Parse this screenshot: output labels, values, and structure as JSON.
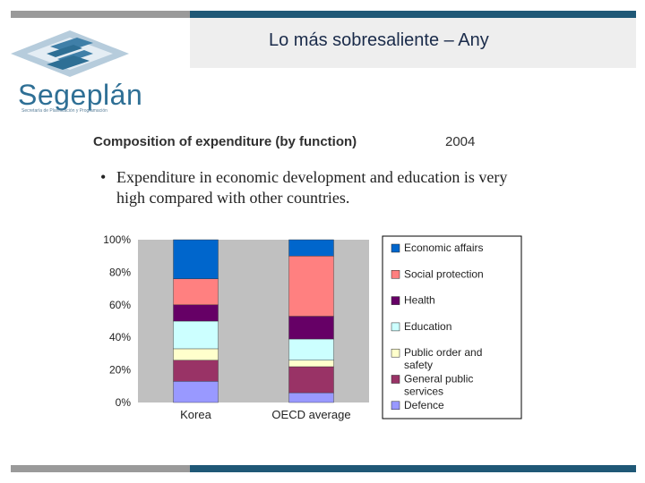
{
  "header": {
    "title": "Lo más sobresaliente – Any"
  },
  "logo": {
    "name": "Segeplán",
    "subtitle": "Secretaría de Planificación y Programación"
  },
  "slide": {
    "chart_title": "Composition of expenditure (by function)",
    "chart_year": "2004",
    "bullet_mark": "•",
    "bullet_text": "Expenditure in economic development and education is very  high compared with other countries."
  },
  "colors": {
    "top_bar_gray": "#9a9a9a",
    "top_bar_blue": "#1f5876",
    "logo_blue": "#2e6f95",
    "plot_background": "#c0c0c0"
  },
  "chart_data": {
    "type": "bar",
    "stacked": true,
    "percent": true,
    "categories": [
      "Korea",
      "OECD average"
    ],
    "ylim": [
      0,
      100
    ],
    "yticks": [
      "0%",
      "20%",
      "40%",
      "60%",
      "80%",
      "100%"
    ],
    "grid": false,
    "legend_position": "right",
    "series": [
      {
        "name": "Defence",
        "color": "#9999ff",
        "values": [
          13,
          6
        ]
      },
      {
        "name": "General public services",
        "color": "#993366",
        "values": [
          13,
          16
        ]
      },
      {
        "name": "Public order and safety",
        "color": "#ffffcc",
        "values": [
          7,
          4
        ]
      },
      {
        "name": "Education",
        "color": "#ccffff",
        "values": [
          17,
          13
        ]
      },
      {
        "name": "Health",
        "color": "#660066",
        "values": [
          10,
          14
        ]
      },
      {
        "name": "Social protection",
        "color": "#ff8080",
        "values": [
          16,
          37
        ]
      },
      {
        "name": "Economic affairs",
        "color": "#0066cc",
        "values": [
          24,
          10
        ]
      }
    ]
  }
}
